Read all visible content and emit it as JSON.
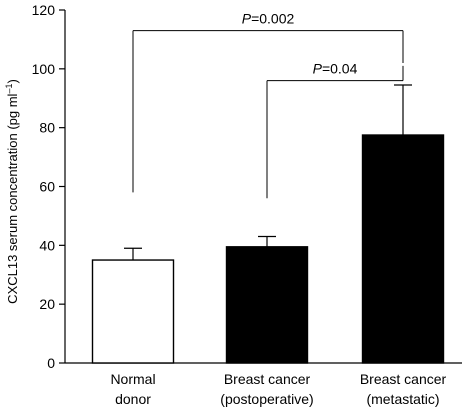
{
  "chart_data": {
    "type": "bar",
    "ylabel": {
      "main": "CXCL13 serum concentration (pg ml",
      "sup": "–1",
      "close": ")"
    },
    "ylim": [
      0,
      120
    ],
    "yticks": [
      0,
      20,
      40,
      60,
      80,
      100,
      120
    ],
    "grid": false,
    "categories": [
      {
        "lines": [
          "Normal",
          "donor"
        ]
      },
      {
        "lines": [
          "Breast cancer",
          "(postoperative)"
        ]
      },
      {
        "lines": [
          "Breast cancer",
          "(metastatic)"
        ]
      }
    ],
    "values": [
      35,
      39.5,
      77.5
    ],
    "errors": [
      4,
      3.5,
      17
    ],
    "bar_colors": [
      "#ffffff",
      "#000000",
      "#000000"
    ],
    "annotations": [
      {
        "label_italic": "P",
        "label_rest": "=0.002",
        "from": 0,
        "to": 2,
        "bracket_y": 113,
        "drop_from": 58,
        "drop_to": 102
      },
      {
        "label_italic": "P",
        "label_rest": "=0.04",
        "from": 1,
        "to": 2,
        "bracket_y": 96,
        "drop_from": 56,
        "drop_to": 101
      }
    ]
  }
}
